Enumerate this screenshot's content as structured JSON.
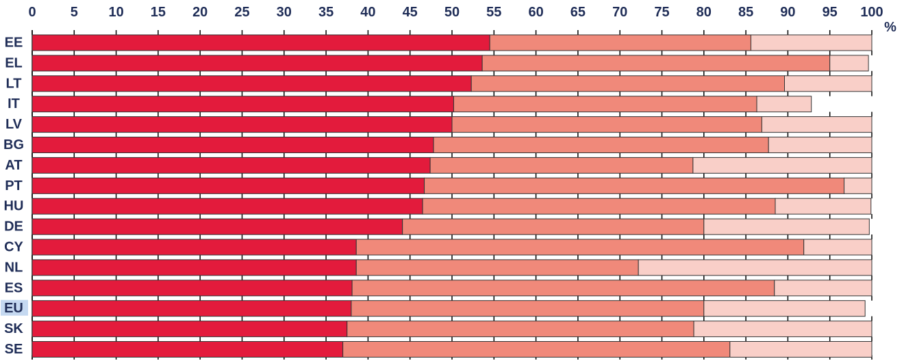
{
  "chart_data": {
    "type": "bar",
    "orientation": "horizontal",
    "stacked": true,
    "title": "",
    "xlabel": "",
    "ylabel": "",
    "unit_label": "%",
    "xlim": [
      0,
      100
    ],
    "xticks": [
      "0",
      "5",
      "10",
      "15",
      "20",
      "25",
      "30",
      "35",
      "40",
      "45",
      "50",
      "55",
      "60",
      "65",
      "70",
      "75",
      "80",
      "85",
      "90",
      "95",
      "100"
    ],
    "tick_position": "top",
    "grid": false,
    "legend": "none",
    "highlight_category": "EU",
    "highlight_color": "#c5d9f1",
    "categories": [
      "EE",
      "EL",
      "LT",
      "IT",
      "LV",
      "BG",
      "AT",
      "PT",
      "HU",
      "DE",
      "CY",
      "NL",
      "ES",
      "EU",
      "SK",
      "SE"
    ],
    "series": [
      {
        "color": "#e31b3c",
        "values": [
          54.5,
          53.6,
          52.3,
          50.2,
          50.0,
          47.8,
          47.4,
          46.7,
          46.5,
          44.1,
          38.6,
          38.6,
          38.1,
          38.0,
          37.5,
          37.0
        ]
      },
      {
        "color": "#f0897a",
        "values": [
          31.1,
          41.4,
          37.3,
          36.1,
          36.9,
          39.9,
          31.3,
          50.0,
          42.0,
          35.9,
          53.3,
          33.6,
          50.3,
          42.0,
          41.3,
          46.1
        ]
      },
      {
        "color": "#f9cfc8",
        "values": [
          14.4,
          4.6,
          10.4,
          6.5,
          13.1,
          12.3,
          21.3,
          3.3,
          11.4,
          19.7,
          8.1,
          27.8,
          11.6,
          19.2,
          21.2,
          16.9
        ]
      }
    ]
  }
}
